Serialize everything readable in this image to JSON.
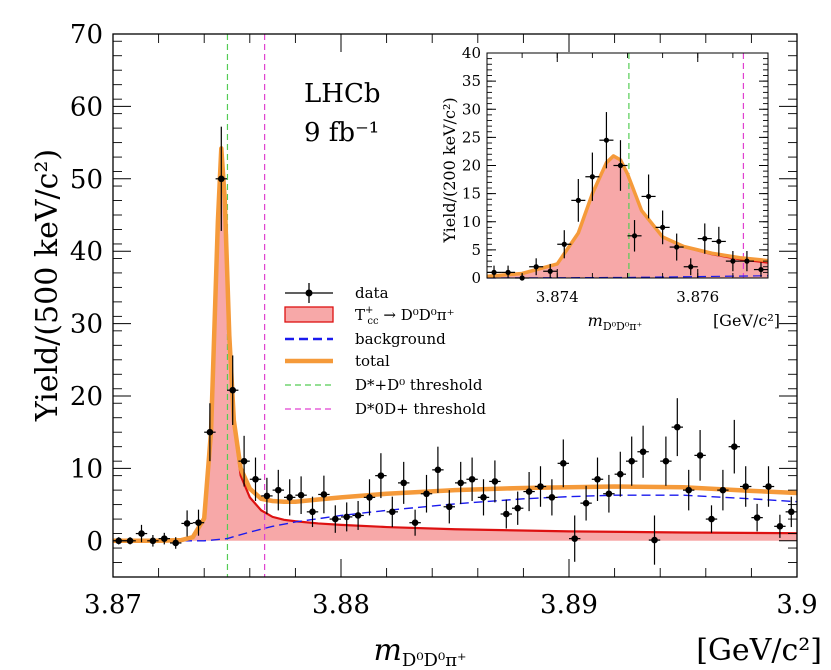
{
  "chart_data": [
    {
      "type": "scatter",
      "name": "main",
      "title": "",
      "annotation": {
        "experiment": "LHCb",
        "luminosity": "9 fb⁻¹"
      },
      "xlabel": "m_{D⁰D⁰π⁺}",
      "xlabel_parts": {
        "base": "m",
        "sub": "D⁰D⁰π⁺"
      },
      "xunit": "[GeV/c²]",
      "ylabel": "Yield/(500 keV/c²)",
      "xlim": [
        3.87,
        3.9
      ],
      "ylim": [
        -5,
        70
      ],
      "xticks": [
        {
          "value": 3.87,
          "label": "3.87"
        },
        {
          "value": 3.88,
          "label": "3.88"
        },
        {
          "value": 3.89,
          "label": "3.89"
        },
        {
          "value": 3.9,
          "label": "3.9"
        }
      ],
      "yticks": [
        {
          "value": 0,
          "label": "0"
        },
        {
          "value": 10,
          "label": "10"
        },
        {
          "value": 20,
          "label": "20"
        },
        {
          "value": 30,
          "label": "30"
        },
        {
          "value": 40,
          "label": "40"
        },
        {
          "value": 50,
          "label": "50"
        },
        {
          "value": 60,
          "label": "60"
        },
        {
          "value": 70,
          "label": "70"
        }
      ],
      "thresholds": [
        {
          "name": "D*+D0 threshold",
          "x": 3.87502,
          "color": "#55cc55"
        },
        {
          "name": "D*0D+ threshold",
          "x": 3.87665,
          "color": "#e040d0"
        }
      ],
      "legend": {
        "position": "center",
        "entries": [
          {
            "key": "data",
            "label": "data"
          },
          {
            "key": "signal",
            "label": "T⁺cc → D⁰D⁰π⁺",
            "label_parts": {
              "t": "T",
              "sup": "+",
              "sub": "cc",
              "rest": " → D⁰D⁰π⁺"
            }
          },
          {
            "key": "background",
            "label": "background"
          },
          {
            "key": "total",
            "label": "total"
          },
          {
            "key": "thr1",
            "label": "D*+D⁰ threshold"
          },
          {
            "key": "thr2",
            "label": "D*0D+ threshold"
          }
        ]
      },
      "colors": {
        "signal_fill": "#f7a8a8",
        "signal_line": "#dd1111",
        "background": "#1a1aee",
        "total": "#f59a3a",
        "data": "#000000"
      },
      "series": [
        {
          "name": "data",
          "points": [
            [
              3.87025,
              0.0,
              0.5
            ],
            [
              3.87075,
              0.0,
              0.5
            ],
            [
              3.87125,
              1.0,
              1.2
            ],
            [
              3.87175,
              0.0,
              0.8
            ],
            [
              3.87225,
              0.3,
              0.8
            ],
            [
              3.87275,
              -0.3,
              0.8
            ],
            [
              3.87325,
              2.4,
              1.8
            ],
            [
              3.87375,
              2.5,
              1.8
            ],
            [
              3.87425,
              15.0,
              4.0
            ],
            [
              3.87475,
              50.0,
              7.2
            ],
            [
              3.87525,
              20.8,
              4.8
            ],
            [
              3.87575,
              11.0,
              3.5
            ],
            [
              3.87625,
              8.5,
              3.0
            ],
            [
              3.87675,
              6.2,
              2.5
            ],
            [
              3.87725,
              7.0,
              2.8
            ],
            [
              3.87775,
              6.0,
              2.5
            ],
            [
              3.87825,
              6.3,
              2.6
            ],
            [
              3.87875,
              4.0,
              2.1
            ],
            [
              3.87925,
              6.4,
              2.6
            ],
            [
              3.87975,
              3.0,
              1.9
            ],
            [
              3.88025,
              3.3,
              2.0
            ],
            [
              3.88075,
              3.5,
              2.0
            ],
            [
              3.88125,
              6.0,
              2.5
            ],
            [
              3.88175,
              9.0,
              3.1
            ],
            [
              3.88225,
              4.0,
              2.1
            ],
            [
              3.88275,
              8.0,
              2.9
            ],
            [
              3.88325,
              2.5,
              1.8
            ],
            [
              3.88375,
              6.5,
              2.6
            ],
            [
              3.88425,
              9.8,
              3.2
            ],
            [
              3.88475,
              4.7,
              2.3
            ],
            [
              3.88525,
              8.0,
              2.9
            ],
            [
              3.88575,
              8.5,
              3.0
            ],
            [
              3.88625,
              6.0,
              2.5
            ],
            [
              3.88675,
              8.2,
              2.9
            ],
            [
              3.88725,
              3.7,
              2.0
            ],
            [
              3.88775,
              4.5,
              2.3
            ],
            [
              3.88825,
              6.8,
              2.7
            ],
            [
              3.88875,
              7.5,
              2.8
            ],
            [
              3.88925,
              6.0,
              2.5
            ],
            [
              3.88975,
              10.7,
              3.3
            ],
            [
              3.89025,
              0.3,
              3.2
            ],
            [
              3.89075,
              5.2,
              2.4
            ],
            [
              3.89125,
              8.5,
              3.0
            ],
            [
              3.89175,
              6.5,
              2.6
            ],
            [
              3.89225,
              9.2,
              3.1
            ],
            [
              3.89275,
              11.0,
              3.4
            ],
            [
              3.89325,
              12.3,
              3.6
            ],
            [
              3.89375,
              0.1,
              3.4
            ],
            [
              3.89425,
              11.0,
              3.4
            ],
            [
              3.89475,
              15.7,
              4.0
            ],
            [
              3.89525,
              7.0,
              2.8
            ],
            [
              3.89575,
              11.8,
              3.5
            ],
            [
              3.89625,
              3.0,
              1.9
            ],
            [
              3.89675,
              7.0,
              2.8
            ],
            [
              3.89725,
              13.0,
              3.7
            ],
            [
              3.89775,
              7.5,
              2.8
            ],
            [
              3.89825,
              3.2,
              1.9
            ],
            [
              3.89875,
              7.5,
              2.8
            ],
            [
              3.89925,
              2.0,
              1.6
            ],
            [
              3.89975,
              4.0,
              2.1
            ]
          ]
        },
        {
          "name": "signal",
          "x": [
            3.87,
            3.872,
            3.873,
            3.8735,
            3.874,
            3.8743,
            3.8746,
            3.87475,
            3.8749,
            3.8751,
            3.8753,
            3.8756,
            3.876,
            3.8765,
            3.877,
            3.8775,
            3.878,
            3.879,
            3.88,
            3.882,
            3.885,
            3.89,
            3.895,
            3.9
          ],
          "y": [
            0,
            0,
            0.1,
            0.4,
            3,
            15,
            44,
            54,
            47,
            28,
            16,
            9,
            6,
            4.2,
            3.3,
            2.9,
            2.7,
            2.4,
            2.2,
            1.9,
            1.6,
            1.3,
            1.15,
            1.05
          ]
        },
        {
          "name": "background",
          "x": [
            3.87,
            3.874,
            3.875,
            3.876,
            3.877,
            3.878,
            3.88,
            3.882,
            3.885,
            3.888,
            3.89,
            3.892,
            3.895,
            3.898,
            3.9
          ],
          "y": [
            0,
            0,
            0.3,
            1.2,
            2.0,
            2.6,
            3.5,
            4.2,
            5.1,
            5.8,
            6.1,
            6.3,
            6.3,
            5.8,
            5.4
          ]
        },
        {
          "name": "total",
          "x": [
            3.87,
            3.872,
            3.873,
            3.8735,
            3.874,
            3.8743,
            3.8746,
            3.87475,
            3.8749,
            3.8751,
            3.8753,
            3.8756,
            3.876,
            3.8765,
            3.877,
            3.8775,
            3.878,
            3.879,
            3.88,
            3.882,
            3.885,
            3.888,
            3.89,
            3.892,
            3.895,
            3.898,
            3.9
          ],
          "y": [
            0,
            0,
            0.1,
            0.5,
            3.1,
            15.1,
            44.1,
            54.2,
            47.3,
            28.4,
            16.6,
            10,
            7.2,
            5.8,
            5.5,
            5.4,
            5.4,
            5.7,
            6.0,
            6.5,
            7.0,
            7.3,
            7.4,
            7.5,
            7.4,
            6.9,
            6.6
          ]
        }
      ]
    },
    {
      "type": "scatter",
      "name": "inset",
      "xlabel": "m_{D⁰D⁰π⁺}",
      "xlabel_parts": {
        "base": "m",
        "sub": "D⁰D⁰π⁺"
      },
      "xunit": "[GeV/c²]",
      "ylabel": "Yield/(200 keV/c²)",
      "xlim": [
        3.873,
        3.877
      ],
      "ylim": [
        0,
        40
      ],
      "xticks": [
        {
          "value": 3.874,
          "label": "3.874"
        },
        {
          "value": 3.876,
          "label": "3.876"
        }
      ],
      "yticks": [
        {
          "value": 0,
          "label": "0"
        },
        {
          "value": 5,
          "label": "5"
        },
        {
          "value": 10,
          "label": "10"
        },
        {
          "value": 15,
          "label": "15"
        },
        {
          "value": 20,
          "label": "20"
        },
        {
          "value": 25,
          "label": "25"
        },
        {
          "value": 30,
          "label": "30"
        },
        {
          "value": 35,
          "label": "35"
        },
        {
          "value": 40,
          "label": "40"
        }
      ],
      "thresholds": [
        {
          "name": "D*+D0 threshold",
          "x": 3.87502,
          "color": "#55cc55"
        },
        {
          "name": "D*0D+ threshold",
          "x": 3.87665,
          "color": "#e040d0"
        }
      ],
      "series": [
        {
          "name": "data",
          "points": [
            [
              3.8731,
              1.0,
              1.2
            ],
            [
              3.8733,
              1.0,
              1.2
            ],
            [
              3.8735,
              0.0,
              0.8
            ],
            [
              3.8737,
              2.0,
              1.5
            ],
            [
              3.8739,
              1.2,
              1.3
            ],
            [
              3.8741,
              6.0,
              2.5
            ],
            [
              3.8743,
              13.8,
              3.8
            ],
            [
              3.8745,
              18.0,
              4.3
            ],
            [
              3.8747,
              24.5,
              5.0
            ],
            [
              3.8749,
              20.0,
              4.5
            ],
            [
              3.8751,
              7.5,
              2.8
            ],
            [
              3.8753,
              14.5,
              3.9
            ],
            [
              3.8755,
              9.0,
              3.0
            ],
            [
              3.8757,
              5.5,
              2.4
            ],
            [
              3.8759,
              2.0,
              1.5
            ],
            [
              3.8761,
              7.0,
              2.7
            ],
            [
              3.8763,
              6.5,
              2.6
            ],
            [
              3.8765,
              3.0,
              1.8
            ],
            [
              3.8767,
              3.0,
              1.8
            ],
            [
              3.8769,
              1.5,
              1.3
            ]
          ]
        },
        {
          "name": "signal",
          "x": [
            3.873,
            3.8735,
            3.874,
            3.8743,
            3.8745,
            3.8747,
            3.8748,
            3.8749,
            3.875,
            3.8752,
            3.8755,
            3.8758,
            3.8762,
            3.8766,
            3.877
          ],
          "y": [
            0.3,
            0.8,
            2.5,
            8,
            15,
            20.5,
            21.7,
            21,
            18.5,
            12,
            7.2,
            5.5,
            4.2,
            3.3,
            2.7
          ]
        },
        {
          "name": "background",
          "x": [
            3.873,
            3.875,
            3.877
          ],
          "y": [
            0,
            0.1,
            0.4
          ]
        },
        {
          "name": "total",
          "x": [
            3.873,
            3.8735,
            3.874,
            3.8743,
            3.8745,
            3.8747,
            3.8748,
            3.8749,
            3.875,
            3.8752,
            3.8755,
            3.8758,
            3.8762,
            3.8766,
            3.877
          ],
          "y": [
            0.3,
            0.8,
            2.5,
            8,
            15,
            20.5,
            21.7,
            21,
            18.5,
            12,
            7.3,
            5.6,
            4.4,
            3.6,
            3.1
          ]
        }
      ]
    }
  ]
}
